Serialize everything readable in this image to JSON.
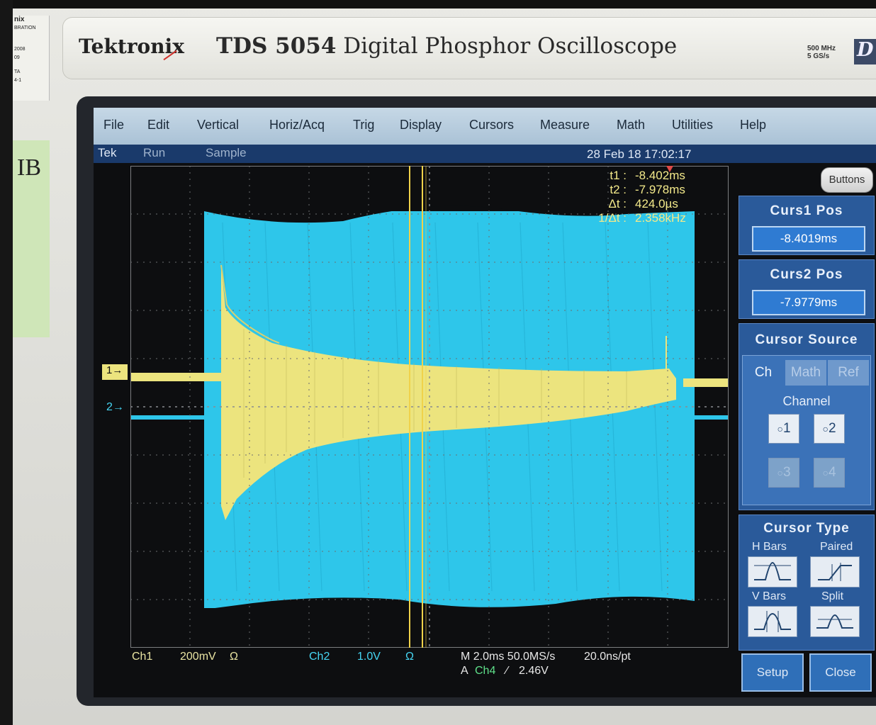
{
  "bezel": {
    "brand": "Tektronix",
    "model_number": "TDS 5054",
    "model_desc": "Digital Phosphor Oscilloscope",
    "spec_line1": "500 MHz",
    "spec_line2": "5 GS/s",
    "logo": "D",
    "sticker_lines": [
      "nix",
      "BRATION",
      "2008",
      "09",
      "TA",
      "4-1"
    ],
    "note_text": "IB"
  },
  "menu": [
    "File",
    "Edit",
    "Vertical",
    "Horiz/Acq",
    "Trig",
    "Display",
    "Cursors",
    "Measure",
    "Math",
    "Utilities",
    "Help"
  ],
  "status": {
    "brand": "Tek",
    "run": "Run",
    "mode": "Sample",
    "datetime": "28 Feb 18 17:02:17"
  },
  "cursor_readout": {
    "t1_label": "t1 :",
    "t1": "-8.402ms",
    "t2_label": "t2 :",
    "t2": "-7.978ms",
    "dt_label": "Δt :",
    "dt": "424.0µs",
    "inv_label": "1/Δt :",
    "inv": "2.358kHz"
  },
  "markers": {
    "ch1": "1",
    "ch2": "2"
  },
  "bottom": {
    "ch1_label": "Ch1",
    "ch1_scale": "200mV",
    "ch1_coupling": "Ω",
    "ch2_label": "Ch2",
    "ch2_scale": "1.0V",
    "ch2_coupling": "Ω",
    "horiz": "M 2.0ms 50.0MS/s",
    "resolution": "20.0ns/pt",
    "trigger_a": "A",
    "trigger_src": "Ch4",
    "trigger_level": "2.46V"
  },
  "panel": {
    "buttons_label": "Buttons",
    "curs1_title": "Curs1 Pos",
    "curs1_value": "-8.4019ms",
    "curs2_title": "Curs2 Pos",
    "curs2_value": "-7.9779ms",
    "source_title": "Cursor Source",
    "tabs": [
      "Ch",
      "Math",
      "Ref"
    ],
    "channel_label": "Channel",
    "channels": [
      "1",
      "2",
      "3",
      "4"
    ],
    "type_title": "Cursor Type",
    "types": [
      "H Bars",
      "Paired",
      "V Bars",
      "Split"
    ],
    "setup_label": "Setup",
    "close_label": "Close"
  },
  "colors": {
    "ch1": "#ece47e",
    "ch2": "#2ec6ea",
    "cursor": "#f0d24a",
    "panel": "#2a5a9a"
  }
}
